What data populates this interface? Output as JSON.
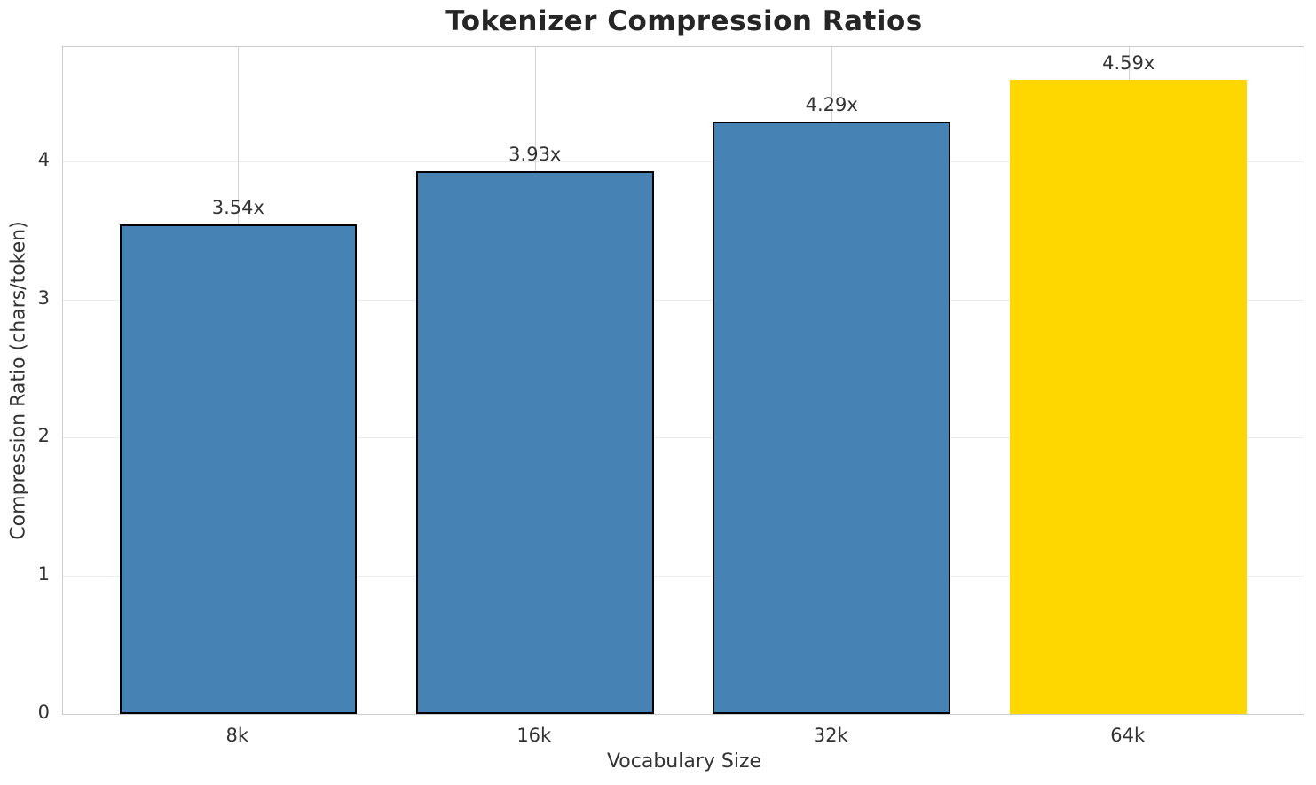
{
  "chart_data": {
    "type": "bar",
    "title": "Tokenizer Compression Ratios",
    "xlabel": "Vocabulary Size",
    "ylabel": "Compression Ratio (chars/token)",
    "categories": [
      "8k",
      "16k",
      "32k",
      "64k"
    ],
    "values": [
      3.54,
      3.93,
      4.29,
      4.59
    ],
    "value_labels": [
      "3.54x",
      "3.93x",
      "4.29x",
      "4.59x"
    ],
    "bar_colors": [
      "#4682B4",
      "#4682B4",
      "#4682B4",
      "#FFD700"
    ],
    "bar_edge_colors": [
      "#000000",
      "#000000",
      "#000000",
      "none"
    ],
    "yticks": [
      0,
      1,
      2,
      3,
      4
    ],
    "ylim": [
      0,
      4.826
    ],
    "bar_width_fraction": 0.8,
    "grid": true,
    "legend": null
  }
}
